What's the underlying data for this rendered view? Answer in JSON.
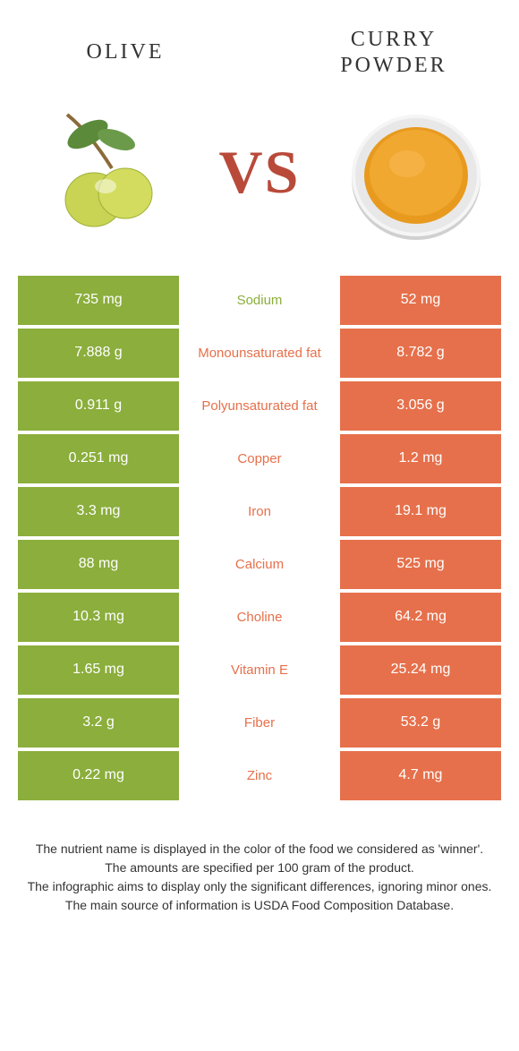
{
  "colors": {
    "left": "#8bae3c",
    "right": "#e6704b",
    "labelLeft": "#8bae3c",
    "labelRight": "#e6704b",
    "vs": "#b94a3a"
  },
  "header": {
    "left": "OLIVE",
    "right": "CURRY\nPOWDER",
    "vs": "VS"
  },
  "rows": [
    {
      "left": "735 mg",
      "label": "Sodium",
      "right": "52 mg",
      "winner": "left"
    },
    {
      "left": "7.888 g",
      "label": "Monounsaturated fat",
      "right": "8.782 g",
      "winner": "right"
    },
    {
      "left": "0.911 g",
      "label": "Polyunsaturated fat",
      "right": "3.056 g",
      "winner": "right"
    },
    {
      "left": "0.251 mg",
      "label": "Copper",
      "right": "1.2 mg",
      "winner": "right"
    },
    {
      "left": "3.3 mg",
      "label": "Iron",
      "right": "19.1 mg",
      "winner": "right"
    },
    {
      "left": "88 mg",
      "label": "Calcium",
      "right": "525 mg",
      "winner": "right"
    },
    {
      "left": "10.3 mg",
      "label": "Choline",
      "right": "64.2 mg",
      "winner": "right"
    },
    {
      "left": "1.65 mg",
      "label": "Vitamin E",
      "right": "25.24 mg",
      "winner": "right"
    },
    {
      "left": "3.2 g",
      "label": "Fiber",
      "right": "53.2 g",
      "winner": "right"
    },
    {
      "left": "0.22 mg",
      "label": "Zinc",
      "right": "4.7 mg",
      "winner": "right"
    }
  ],
  "footnotes": [
    "The nutrient name is displayed in the color of the food we considered as 'winner'.",
    "The amounts are specified per 100 gram of the product.",
    "The infographic aims to display only the significant differences, ignoring minor ones.",
    "The main source of information is USDA Food Composition Database."
  ]
}
